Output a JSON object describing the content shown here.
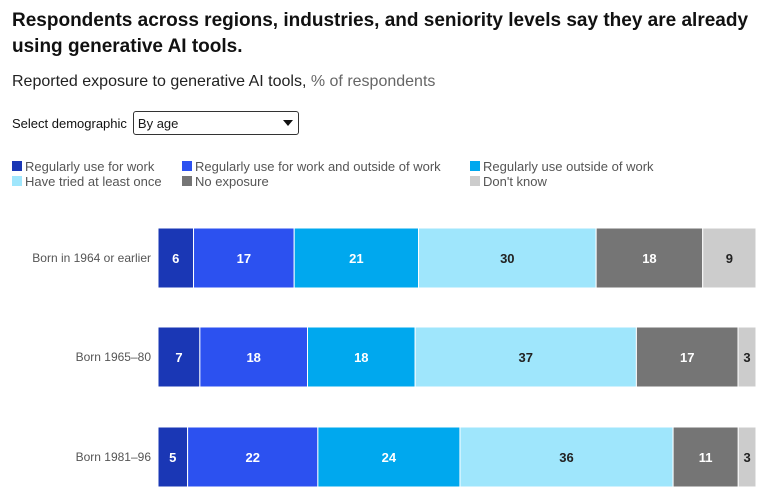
{
  "title": "Respondents across regions, industries, and seniority levels say they are already using generative AI tools.",
  "subtitle": "Reported exposure to generative AI tools,",
  "subtitle_unit": "% of respondents",
  "selector": {
    "label": "Select demographic",
    "value": "By age"
  },
  "chart_data": {
    "type": "bar",
    "orientation": "horizontal",
    "stacked": true,
    "categories": [
      "Born in 1964 or earlier",
      "Born 1965–80",
      "Born 1981–96"
    ],
    "series": [
      {
        "name": "Regularly use for work",
        "color": "#1a37b5",
        "values": [
          6,
          7,
          5
        ]
      },
      {
        "name": "Regularly use for work and outside of work",
        "color": "#2c51f0",
        "values": [
          17,
          18,
          22
        ]
      },
      {
        "name": "Regularly use outside of work",
        "color": "#00a8ee",
        "values": [
          21,
          18,
          24
        ]
      },
      {
        "name": "Have tried at least once",
        "color": "#9fe6fc",
        "values": [
          30,
          37,
          36
        ]
      },
      {
        "name": "No exposure",
        "color": "#757575",
        "values": [
          18,
          17,
          11
        ]
      },
      {
        "name": "Don't know",
        "color": "#cccccc",
        "values": [
          9,
          3,
          3
        ]
      }
    ],
    "legend_position": "top",
    "xlim": [
      0,
      100
    ],
    "grid": false
  }
}
